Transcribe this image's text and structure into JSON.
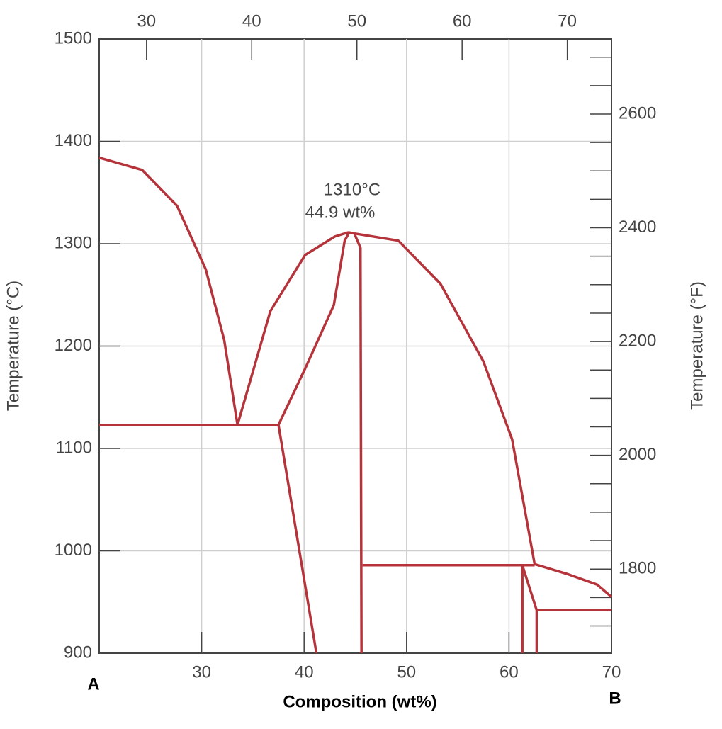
{
  "chart_data": {
    "type": "line",
    "xlabel": "Composition (wt%)",
    "ylabel": "Temperature (°C)",
    "y2label": "Temperature (°F)",
    "xlim": [
      20,
      70
    ],
    "xticks": [
      30,
      40,
      50,
      60,
      70
    ],
    "x2lim": [
      25.5,
      74.2
    ],
    "x2ticks": [
      30,
      40,
      50,
      60,
      70
    ],
    "ylim": [
      900,
      1500
    ],
    "yticks": [
      900,
      1000,
      1100,
      1200,
      1300,
      1400,
      1500
    ],
    "y2lim": [
      1652,
      2732
    ],
    "y2ticks": [
      1800,
      2000,
      2200,
      2400,
      2600
    ],
    "y2minorticks": [
      1700,
      1750,
      1850,
      1900,
      1950,
      2050,
      2100,
      2150,
      2250,
      2300,
      2350,
      2450,
      2500,
      2550,
      2650,
      2700
    ],
    "grid": true,
    "end_labels": [
      "A",
      "B"
    ],
    "annotation": [
      "1310°C",
      "44.9 wt%"
    ],
    "series": [
      {
        "color": "#b5333a",
        "x": [
          20,
          24.2,
          27.6,
          30.4,
          32.2,
          33.5
        ],
        "values": [
          1384,
          1372,
          1337,
          1275,
          1206,
          1123
        ]
      },
      {
        "color": "#b5333a",
        "x": [
          33.5,
          36.7,
          40.1,
          43,
          44.3,
          44.9
        ],
        "values": [
          1123,
          1234,
          1289,
          1307,
          1311,
          1310
        ]
      },
      {
        "color": "#b5333a",
        "x": [
          44.9,
          49.2,
          53.3,
          57.5,
          60.3,
          62.5
        ],
        "values": [
          1310,
          1303,
          1261,
          1185,
          1109,
          987
        ]
      },
      {
        "color": "#b5333a",
        "x": [
          37.5,
          40.1,
          42.9,
          43.96,
          44.4,
          44.9
        ],
        "values": [
          1123,
          1178,
          1240,
          1303,
          1311,
          1310
        ]
      },
      {
        "color": "#b5333a",
        "x": [
          44.9,
          45.5,
          45.6
        ],
        "values": [
          1310,
          1296,
          900
        ]
      },
      {
        "color": "#b5333a",
        "x": [
          20,
          37.5
        ],
        "values": [
          1123,
          1123
        ]
      },
      {
        "color": "#b5333a",
        "x": [
          37.5,
          41.2
        ],
        "values": [
          1123,
          900
        ]
      },
      {
        "color": "#b5333a",
        "x": [
          45.7,
          62.5
        ],
        "values": [
          986,
          986
        ]
      },
      {
        "color": "#b5333a",
        "x": [
          61.3,
          61.3
        ],
        "values": [
          986,
          900
        ]
      },
      {
        "color": "#b5333a",
        "x": [
          61.3,
          62.7,
          62.7
        ],
        "values": [
          986,
          942,
          900
        ]
      },
      {
        "color": "#b5333a",
        "x": [
          62.5,
          65.8,
          68.6,
          70
        ],
        "values": [
          987,
          977,
          967,
          955
        ]
      },
      {
        "color": "#b5333a",
        "x": [
          62.7,
          70
        ],
        "values": [
          942,
          942
        ]
      }
    ]
  }
}
